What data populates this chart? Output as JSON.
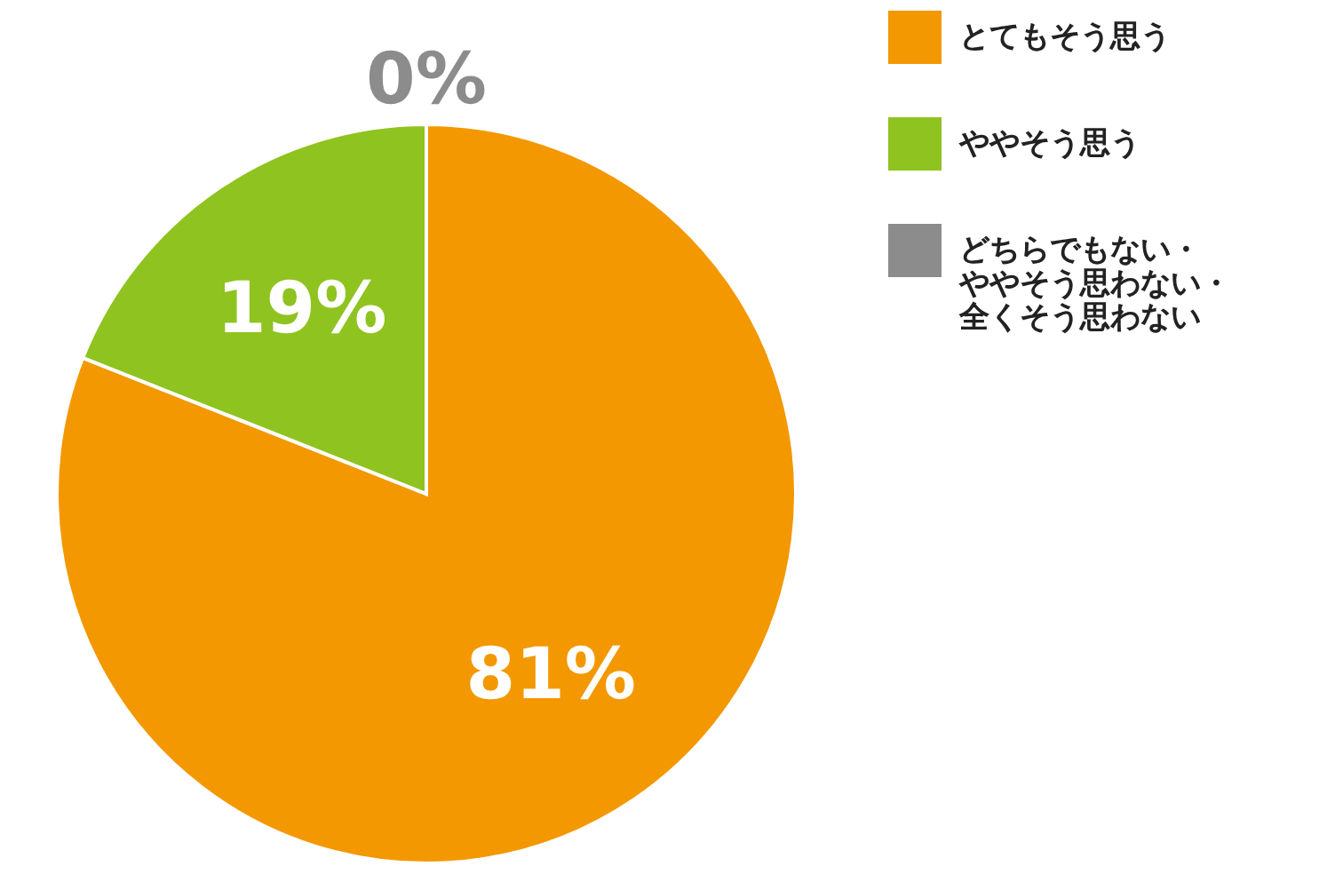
{
  "chart_data": {
    "type": "pie",
    "categories": [
      "とてもそう思う",
      "ややそう思う",
      "どちらでもない・ややそう思わない・全くそう思わない"
    ],
    "values": [
      81,
      19,
      0
    ],
    "colors": [
      "#f39800",
      "#8fc31f",
      "#8c8c8c"
    ],
    "value_labels": [
      "81%",
      "19%",
      "0%"
    ],
    "legend": "right"
  }
}
